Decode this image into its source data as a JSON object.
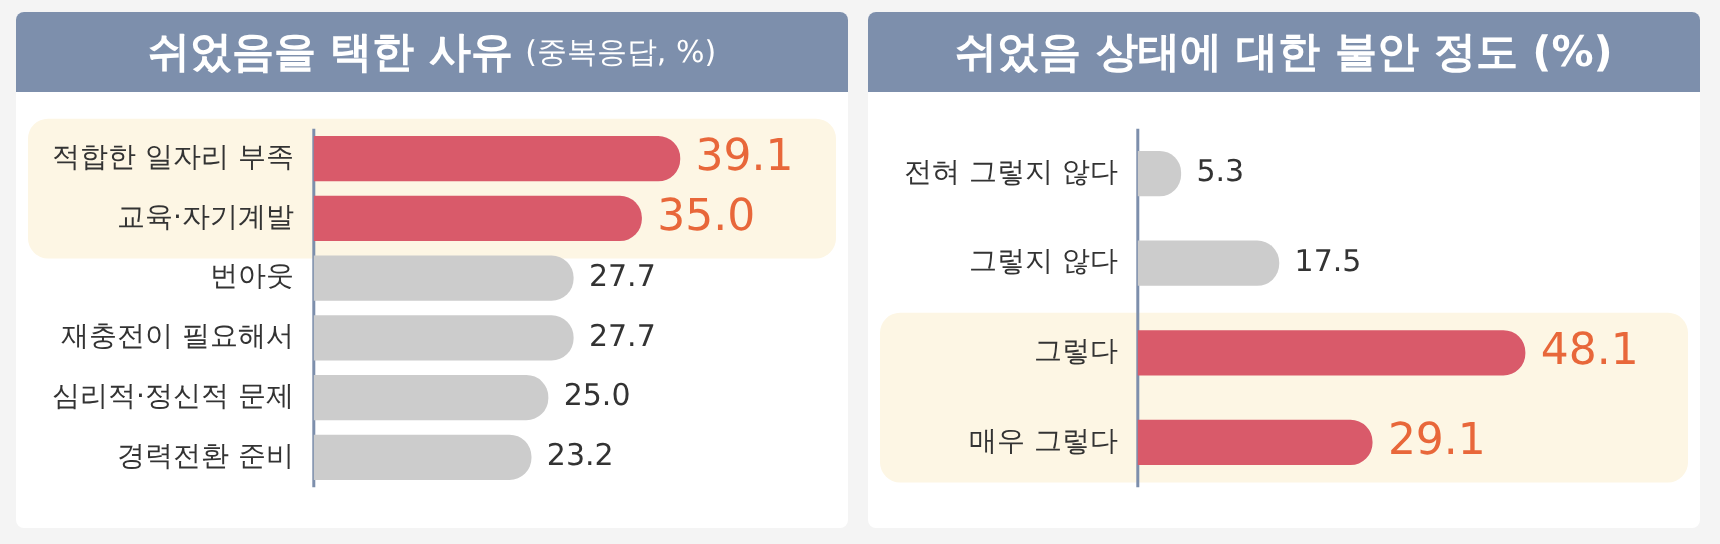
{
  "chart_data": [
    {
      "type": "bar",
      "orientation": "horizontal",
      "title": "쉬었음을 택한 사유",
      "subtitle": "(중복응답, %)",
      "categories": [
        "적합한 일자리 부족",
        "교육·자기계발",
        "번아웃",
        "재충전이 필요해서",
        "심리적·정신적 문제",
        "경력전환 준비"
      ],
      "values": [
        39.1,
        35.0,
        27.7,
        27.7,
        25.0,
        23.2
      ],
      "value_labels": [
        "39.1",
        "35.0",
        "27.7",
        "27.7",
        "25.0",
        "23.2"
      ],
      "colors": [
        "#d95a6a",
        "#d95a6a",
        "#cccccc",
        "#cccccc",
        "#cccccc",
        "#cccccc"
      ],
      "tick_labels": "y",
      "grid": false,
      "legend": false,
      "bands": [
        {
          "axis": "y",
          "from": "적합한 일자리 부족",
          "to": "교육·자기계발",
          "color": "#fdf6e4"
        }
      ]
    },
    {
      "type": "bar",
      "orientation": "horizontal",
      "title": "쉬었음 상태에 대한 불안 정도 (%)",
      "categories": [
        "전혀 그렇지 않다",
        "그렇지 않다",
        "그렇다",
        "매우 그렇다"
      ],
      "values": [
        5.3,
        17.5,
        48.1,
        29.1
      ],
      "value_labels": [
        "5.3",
        "17.5",
        "48.1",
        "29.1"
      ],
      "colors": [
        "#cccccc",
        "#cccccc",
        "#d95a6a",
        "#d95a6a"
      ],
      "tick_labels": "y",
      "grid": false,
      "legend": false,
      "bands": [
        {
          "axis": "y",
          "from": "그렇다",
          "to": "매우 그렇다",
          "color": "#fdf6e4"
        }
      ]
    }
  ]
}
